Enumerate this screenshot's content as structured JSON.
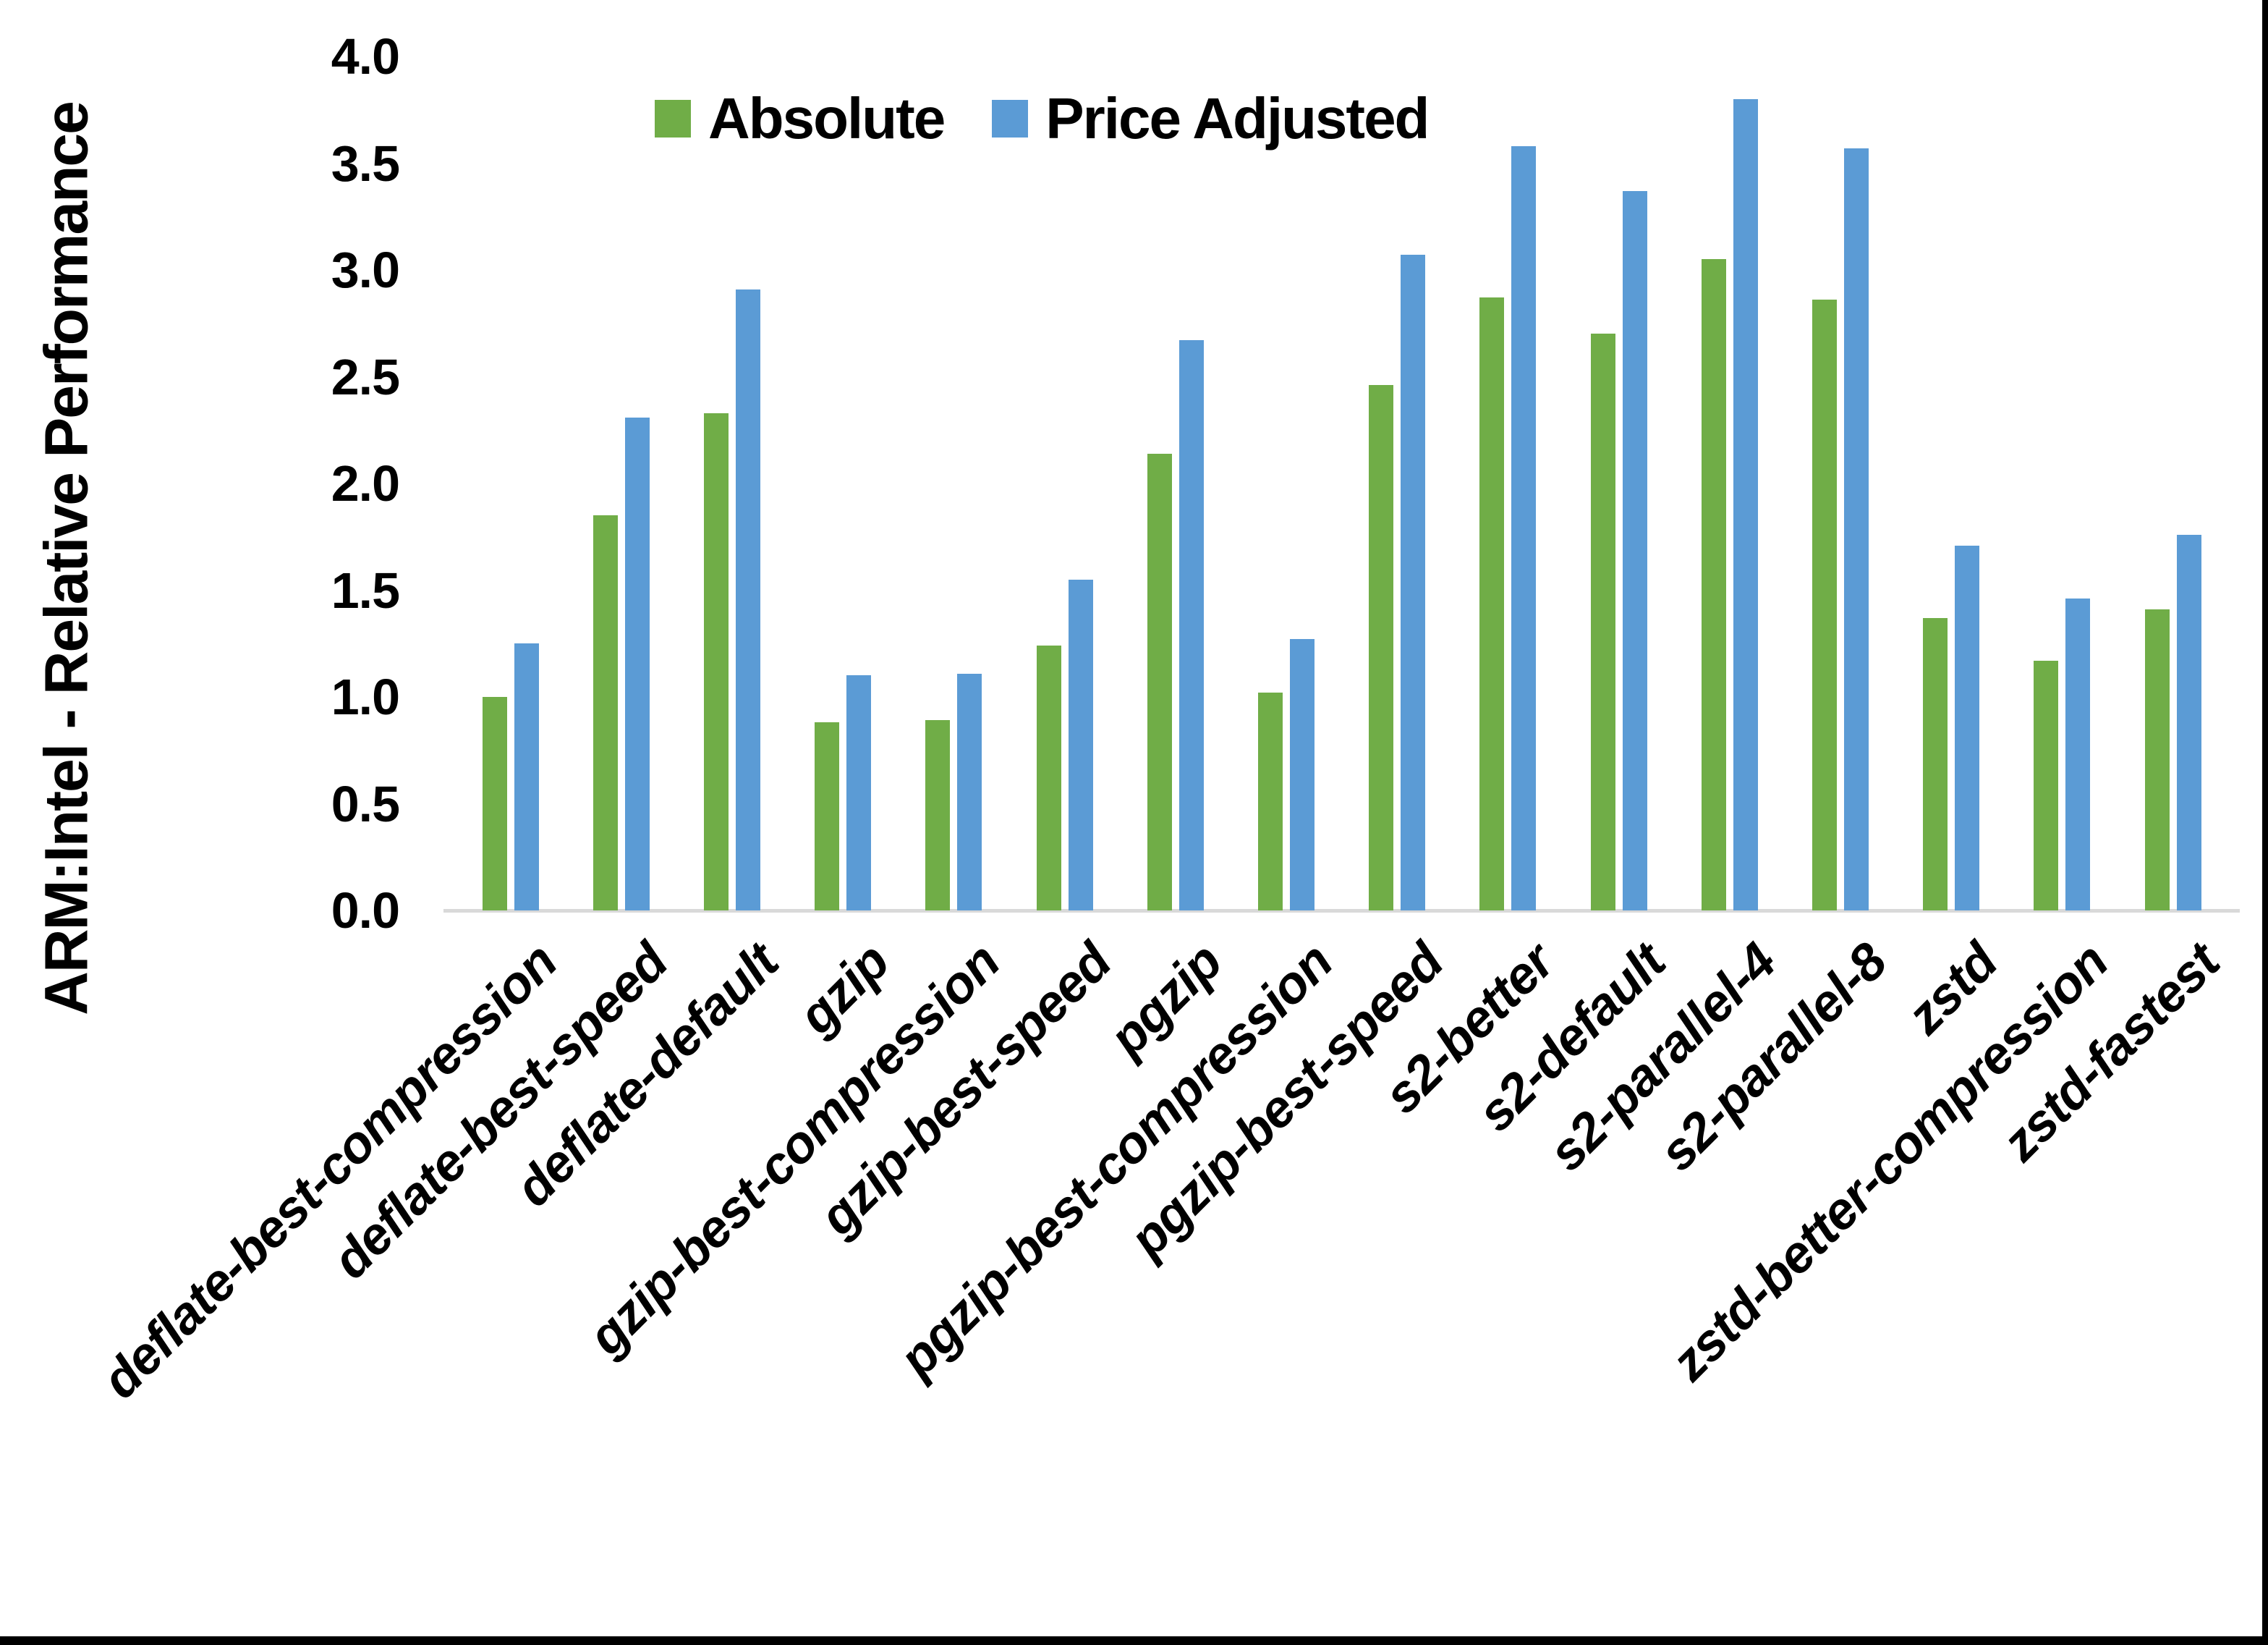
{
  "chart_data": {
    "type": "bar",
    "title": "",
    "xlabel": "",
    "ylabel": "ARM:Intel - Relative Performance",
    "ylim": [
      0.0,
      4.0
    ],
    "ytick_step": 0.5,
    "grid": false,
    "legend_position": "top",
    "categories": [
      "deflate-best-compression",
      "deflate-best-speed",
      "deflate-default",
      "gzip",
      "gzip-best-compression",
      "gzip-best-speed",
      "pgzip",
      "pgzip-best-compression",
      "pgzip-best-speed",
      "s2-better",
      "s2-default",
      "s2-parallel-4",
      "s2-parallel-8",
      "zstd",
      "zstd-better-compression",
      "zstd-fastest"
    ],
    "series": [
      {
        "name": "Absolute",
        "color": "#70AD47",
        "values": [
          1.0,
          1.85,
          2.33,
          0.88,
          0.89,
          1.24,
          2.14,
          1.02,
          2.46,
          2.87,
          2.7,
          3.05,
          2.86,
          1.37,
          1.17,
          1.41
        ]
      },
      {
        "name": "Price Adjusted",
        "color": "#5B9BD5",
        "values": [
          1.25,
          2.31,
          2.91,
          1.1,
          1.11,
          1.55,
          2.67,
          1.27,
          3.07,
          3.58,
          3.37,
          3.8,
          3.57,
          1.71,
          1.46,
          1.76
        ]
      }
    ]
  },
  "axis": {
    "y_tick_labels": [
      "0.0",
      "0.5",
      "1.0",
      "1.5",
      "2.0",
      "2.5",
      "3.0",
      "3.5",
      "4.0"
    ]
  },
  "legend": {
    "items": [
      {
        "label": "Absolute",
        "color": "#70AD47"
      },
      {
        "label": "Price Adjusted",
        "color": "#5B9BD5"
      }
    ]
  },
  "colors": {
    "absolute_green": "#70AD47",
    "price_adjusted_blue": "#5B9BD5",
    "axis_line_gray": "#D9D9D9",
    "text_black": "#000000",
    "frame_black": "#000000"
  }
}
